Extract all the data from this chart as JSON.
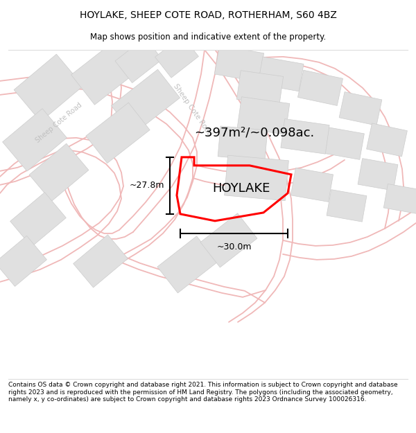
{
  "title_line1": "HOYLAKE, SHEEP COTE ROAD, ROTHERHAM, S60 4BZ",
  "title_line2": "Map shows position and indicative extent of the property.",
  "property_label": "HOYLAKE",
  "area_label": "~397m²/~0.098ac.",
  "dim_vertical": "~27.8m",
  "dim_horizontal": "~30.0m",
  "footer_text": "Contains OS data © Crown copyright and database right 2021. This information is subject to Crown copyright and database rights 2023 and is reproduced with the permission of HM Land Registry. The polygons (including the associated geometry, namely x, y co-ordinates) are subject to Crown copyright and database rights 2023 Ordnance Survey 100026316.",
  "bg_color": "#ffffff",
  "road_color": "#f0b8b8",
  "building_color": "#e0e0e0",
  "building_edge": "#cccccc",
  "property_color": "#ff0000",
  "road_label_color": "#c0c0c0",
  "dim_color": "#000000",
  "title_fontsize": 10,
  "subtitle_fontsize": 8.5,
  "label_fontsize": 13,
  "area_fontsize": 13,
  "dim_fontsize": 9,
  "footer_fontsize": 6.5,
  "figsize": [
    6.0,
    6.25
  ],
  "dpi": 100
}
